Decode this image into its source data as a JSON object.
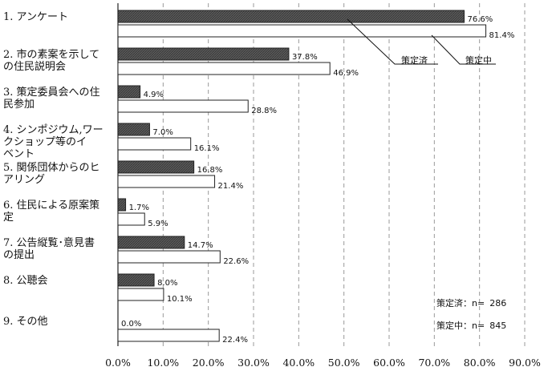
{
  "chart_data": {
    "type": "bar",
    "orientation": "horizontal",
    "categories": [
      [
        "1. アンケート"
      ],
      [
        "2. 市の素案を示して",
        "の住民説明会"
      ],
      [
        "3. 策定委員会への住",
        "民参加"
      ],
      [
        "4. シンポジウム,ワー",
        "クショップ等のイ",
        "ベント"
      ],
      [
        "5. 関係団体からのヒ",
        "アリング"
      ],
      [
        "6. 住民による原案策",
        "定"
      ],
      [
        "7. 公告縦覧･意見書",
        "の提出"
      ],
      [
        "8. 公聴会"
      ],
      [
        "9. その他"
      ]
    ],
    "series": [
      {
        "name": "策定済",
        "values": [
          76.6,
          37.8,
          4.9,
          7.0,
          16.8,
          1.7,
          14.7,
          8.0,
          0.0
        ]
      },
      {
        "name": "策定中",
        "values": [
          81.4,
          46.9,
          28.8,
          16.1,
          21.4,
          5.9,
          22.6,
          10.1,
          22.4
        ]
      }
    ],
    "value_labels": {
      "策定済": [
        "76.6%",
        "37.8%",
        "4.9%",
        "7.0%",
        "16.8%",
        "1.7%",
        "14.7%",
        "8.0%",
        "0.0%"
      ],
      "策定中": [
        "81.4%",
        "46.9%",
        "28.8%",
        "16.1%",
        "21.4%",
        "5.9%",
        "22.6%",
        "10.1%",
        "22.4%"
      ]
    },
    "xlim": [
      0,
      90
    ],
    "xticks": [
      "0.0%",
      "10.0%",
      "20.0%",
      "30.0%",
      "40.0%",
      "50.0%",
      "60.0%",
      "70.0%",
      "80.0%",
      "90.0%"
    ],
    "grid": "vertical dashed",
    "legend_placement": "top-right, callouts",
    "notes": [
      {
        "label": "策定済：n=",
        "value": "286"
      },
      {
        "label": "策定中：n=",
        "value": "845"
      }
    ],
    "colors": {
      "策定済": "#555555",
      "策定中": "#ffffff",
      "outline": "#222222",
      "grid": "#9a9a9a"
    }
  }
}
